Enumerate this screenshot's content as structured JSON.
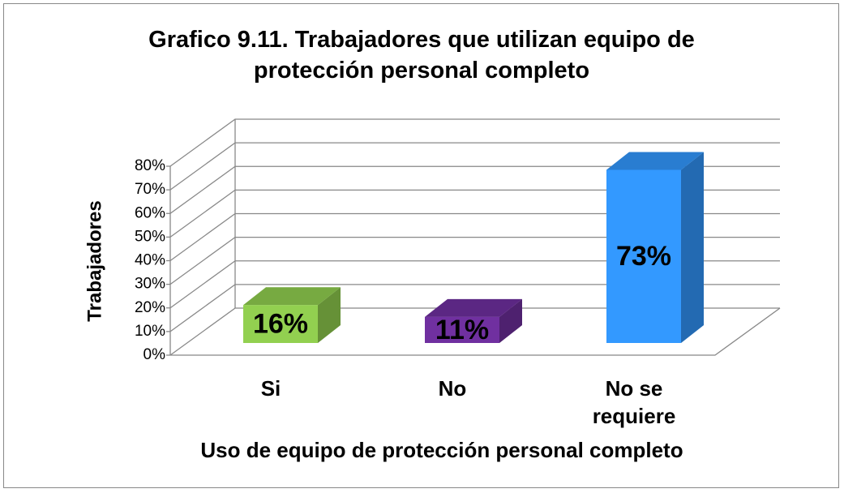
{
  "chart_data": {
    "type": "bar3d",
    "title": "Grafico 9.11. Trabajadores que utilizan equipo de protección personal completo",
    "x_label": "Uso de equipo de protección personal completo",
    "y_label": "Trabajadores",
    "categories": [
      "Si",
      "No",
      "No se requiere"
    ],
    "values": [
      16,
      11,
      73
    ],
    "value_labels": [
      "16%",
      "11%",
      "73%"
    ],
    "colors": [
      "#92d050",
      "#7030a0",
      "#3399ff"
    ],
    "ylim": [
      0,
      80
    ],
    "yticks": [
      {
        "value": 0,
        "label": "0%"
      },
      {
        "value": 10,
        "label": "10%"
      },
      {
        "value": 20,
        "label": "20%"
      },
      {
        "value": 30,
        "label": "30%"
      },
      {
        "value": 40,
        "label": "40%"
      },
      {
        "value": 50,
        "label": "50%"
      },
      {
        "value": 60,
        "label": "60%"
      },
      {
        "value": 70,
        "label": "70%"
      },
      {
        "value": 80,
        "label": "80%"
      }
    ],
    "grid": true
  }
}
